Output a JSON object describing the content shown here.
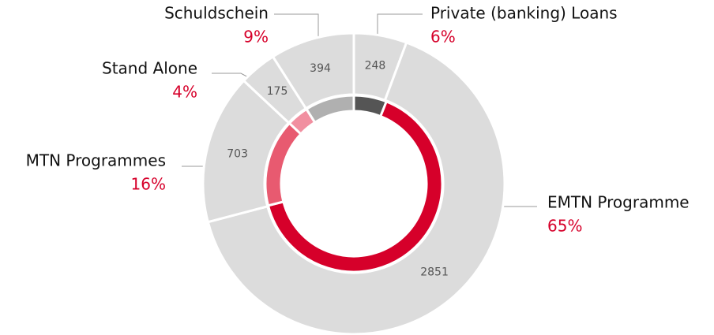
{
  "chart_data": {
    "type": "donut",
    "categories": [
      "Private (banking) Loans",
      "EMTN Programme",
      "MTN Programmes",
      "Stand Alone",
      "Schuldschein"
    ],
    "series": [
      {
        "values": [
          248,
          2851,
          703,
          175,
          394
        ],
        "color": "#dcdcdc"
      },
      {
        "values": [
          6,
          65,
          16,
          4,
          9
        ],
        "value_labels": [
          "6%",
          "65%",
          "16%",
          "4%",
          "9%"
        ],
        "colors": [
          "#555555",
          "#d6002a",
          "#e85a70",
          "#f18fa0",
          "#b0b0b0"
        ]
      }
    ]
  }
}
